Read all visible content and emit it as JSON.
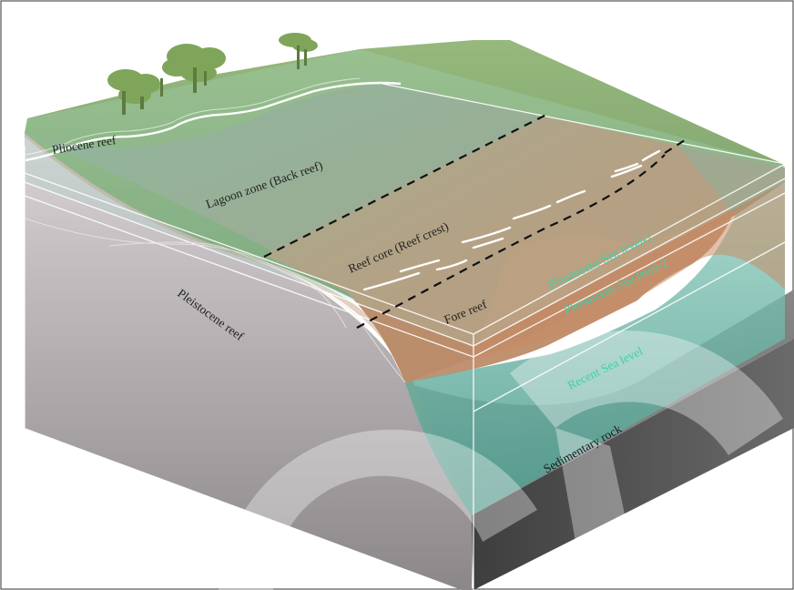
{
  "labels": {
    "pliocene_reef": "Pliocene reef",
    "lagoon_zone": "Lagoon zone (Back reef)",
    "reef_core": "Reef core (Reef crest)",
    "fore_reef": "Fore reef",
    "pleistocene_reef": "Pleistocene reef",
    "sea_level_1": "Pleistocene Sea level-1",
    "sea_level_2": "Pleistocene Sea level-2",
    "recent_sea_level": "Recent Sea level",
    "sedimentary_rock": "Sedimentary rock"
  },
  "colors": {
    "sea_level_text": "#3cd2a8",
    "label_text": "#222222",
    "land_green": "#8fae78",
    "reef_brown": "#b98866",
    "water_teal": "#6fb5a6",
    "rock_gray": "#8a8a8a"
  },
  "icons": [
    "tree-icon",
    "watermark-logo"
  ]
}
